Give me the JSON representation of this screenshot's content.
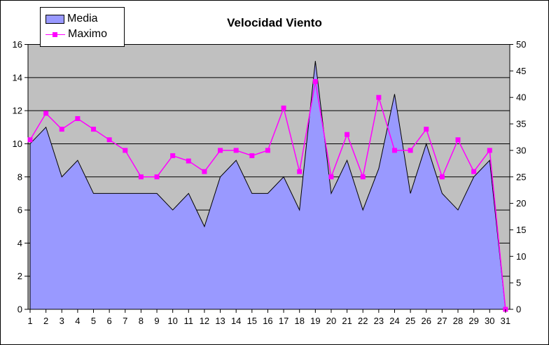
{
  "title": "Velocidad Viento",
  "legend": {
    "items": [
      {
        "label": "Media",
        "type": "area",
        "color": "#9999FF"
      },
      {
        "label": "Maximo",
        "type": "line",
        "color": "#FF00FF"
      }
    ]
  },
  "colors": {
    "chart_bg": "#FFFFFF",
    "plot_bg": "#C0C0C0",
    "area_fill": "#9999FF",
    "area_outline": "#000000",
    "line": "#FF00FF",
    "marker": "#FF00FF",
    "grid": "#000000",
    "axis": "#000000",
    "text": "#000000"
  },
  "chart_data": {
    "type": "area+line",
    "title": "Velocidad Viento",
    "x": [
      1,
      2,
      3,
      4,
      5,
      6,
      7,
      8,
      9,
      10,
      11,
      12,
      13,
      14,
      15,
      16,
      17,
      18,
      19,
      20,
      21,
      22,
      23,
      24,
      25,
      26,
      27,
      28,
      29,
      30,
      31
    ],
    "x_tick_labels": [
      "1",
      "2",
      "3",
      "4",
      "5",
      "6",
      "7",
      "8",
      "9",
      "10",
      "11",
      "12",
      "13",
      "14",
      "15",
      "16",
      "17",
      "18",
      "19",
      "20",
      "21",
      "22",
      "23",
      "24",
      "25",
      "26",
      "27",
      "28",
      "29",
      "30",
      "31"
    ],
    "series": [
      {
        "name": "Media",
        "type": "area",
        "axis": "left",
        "values": [
          10,
          11,
          8,
          9,
          7,
          7,
          7,
          7,
          7,
          6,
          7,
          5,
          8,
          9,
          7,
          7,
          8,
          6,
          15,
          7,
          9,
          6,
          8.5,
          13,
          7,
          10,
          7,
          6,
          8,
          9,
          0
        ]
      },
      {
        "name": "Maximo",
        "type": "line",
        "axis": "right",
        "values": [
          32,
          37,
          34,
          36,
          34,
          32,
          30,
          25,
          25,
          29,
          28,
          26,
          30,
          30,
          29,
          30,
          38,
          26,
          43,
          25,
          33,
          25,
          40,
          30,
          30,
          34,
          25,
          32,
          26,
          30,
          0
        ]
      }
    ],
    "left_axis": {
      "min": 0,
      "max": 16,
      "step": 2,
      "ticks": [
        0,
        2,
        4,
        6,
        8,
        10,
        12,
        14,
        16
      ]
    },
    "right_axis": {
      "min": 0,
      "max": 50,
      "step": 5,
      "ticks": [
        0,
        5,
        10,
        15,
        20,
        25,
        30,
        35,
        40,
        45,
        50
      ]
    },
    "grid": "horizontal",
    "legend_position": "top-left"
  }
}
